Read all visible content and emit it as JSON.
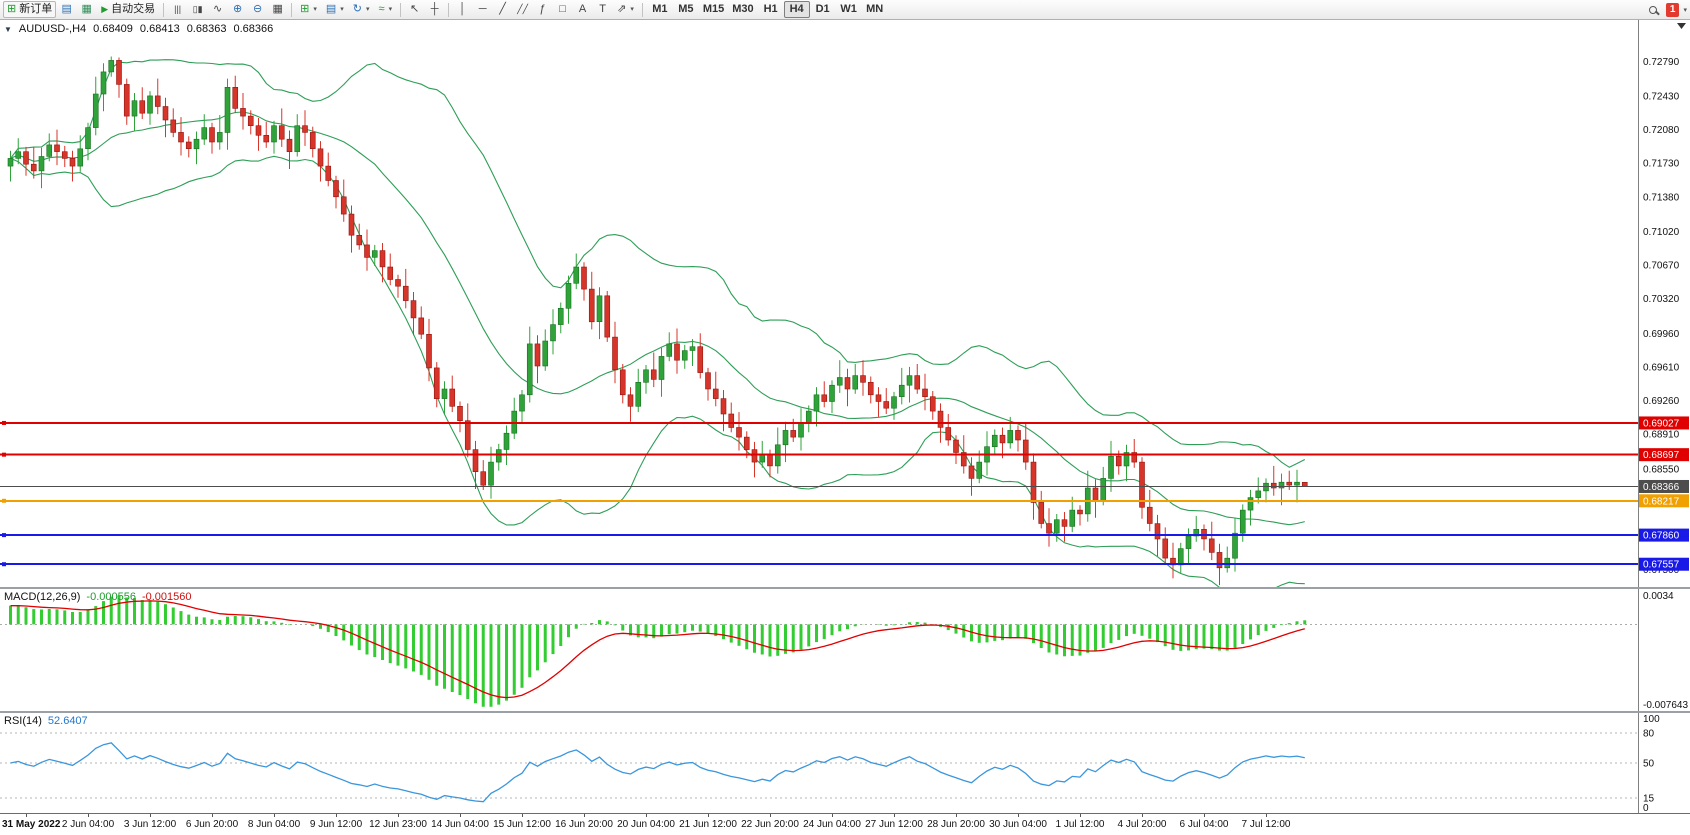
{
  "colors": {
    "bull": "#2fa33a",
    "bull_border": "#17701f",
    "bear": "#d7342a",
    "bear_border": "#8f1712",
    "bollinger": "#2e9e57",
    "macd_hist": "#33cc33",
    "macd_signal": "#e00000",
    "rsi": "#3a96dd",
    "line_red": "#e00000",
    "line_blue": "#1a1ae8",
    "line_orange": "#f0a000",
    "bid_line": "#4d4d4d"
  },
  "icons": {
    "collapse": "▼",
    "new_order": "⊞",
    "chart_window": "▤",
    "data_window": "▦",
    "auto_play": "▶",
    "bars": "|||",
    "candles": "▯▮",
    "line_chart": "∿",
    "zoom_in": "⊕",
    "zoom_out": "⊖",
    "tile": "▦",
    "new_chart": "⊞",
    "profiles": "▤",
    "period": "↻",
    "indicators": "≈",
    "cursor": "↖",
    "crosshair": "┼",
    "vline": "│",
    "hline": "─",
    "trendline": "╱",
    "channel": "╱╱",
    "fibonacci": "ƒ",
    "shapes": "□",
    "text": "A",
    "text_label": "T",
    "arrows": "⇗",
    "dropdown": "▾",
    "overflow": "▾"
  },
  "toolbar": {
    "new_order": "新订单",
    "auto_trading": "自动交易",
    "timeframes": [
      "M1",
      "M5",
      "M15",
      "M30",
      "H1",
      "H4",
      "D1",
      "W1",
      "MN"
    ],
    "active_timeframe": "H4",
    "notification_count": "1"
  },
  "chart": {
    "symbol_period": "AUDUSD-,H4",
    "open": "0.68409",
    "high": "0.68413",
    "low": "0.68363",
    "close": "0.68366"
  },
  "chart_data": {
    "type": "candlestick",
    "symbol": "AUDUSD",
    "timeframe": "H4",
    "current": {
      "open": 0.68409,
      "high": 0.68413,
      "low": 0.68363,
      "close": 0.68366
    },
    "y_axis": {
      "top_price": 0.7322,
      "bottom_price": 0.6732,
      "labels": [
        "0.72790",
        "0.72430",
        "0.72080",
        "0.71730",
        "0.71380",
        "0.71020",
        "0.70670",
        "0.70320",
        "0.69960",
        "0.69610",
        "0.69260",
        "0.68910",
        "0.68550",
        "0.68200",
        "0.67850",
        "0.67500"
      ]
    },
    "x_labels": [
      "31 May 2022",
      "2 Jun 04:00",
      "3 Jun 12:00",
      "6 Jun 20:00",
      "8 Jun 04:00",
      "9 Jun 12:00",
      "12 Jun 23:00",
      "14 Jun 04:00",
      "15 Jun 12:00",
      "16 Jun 20:00",
      "20 Jun 04:00",
      "21 Jun 12:00",
      "22 Jun 20:00",
      "24 Jun 04:00",
      "27 Jun 12:00",
      "28 Jun 20:00",
      "30 Jun 04:00",
      "1 Jul 12:00",
      "4 Jul 20:00",
      "6 Jul 04:00",
      "7 Jul 12:00"
    ],
    "x_label_indices": [
      2,
      10,
      18,
      26,
      34,
      42,
      50,
      58,
      66,
      74,
      82,
      90,
      98,
      106,
      114,
      122,
      130,
      138,
      146,
      154,
      162
    ],
    "candles": [
      [
        0.717,
        0.7186,
        0.7154,
        0.7178
      ],
      [
        0.7178,
        0.7199,
        0.7172,
        0.7185
      ],
      [
        0.7185,
        0.719,
        0.716,
        0.7172
      ],
      [
        0.7172,
        0.719,
        0.7157,
        0.7165
      ],
      [
        0.7165,
        0.7189,
        0.7147,
        0.718
      ],
      [
        0.718,
        0.7204,
        0.7175,
        0.7192
      ],
      [
        0.7192,
        0.7208,
        0.7171,
        0.7185
      ],
      [
        0.7185,
        0.7191,
        0.7169,
        0.7178
      ],
      [
        0.7178,
        0.7186,
        0.7154,
        0.717
      ],
      [
        0.717,
        0.7202,
        0.7164,
        0.7188
      ],
      [
        0.7188,
        0.7215,
        0.7176,
        0.721
      ],
      [
        0.721,
        0.7263,
        0.7202,
        0.7245
      ],
      [
        0.7245,
        0.7277,
        0.7227,
        0.7268
      ],
      [
        0.7268,
        0.7284,
        0.7263,
        0.728
      ],
      [
        0.728,
        0.7283,
        0.7241,
        0.7255
      ],
      [
        0.7255,
        0.7261,
        0.7213,
        0.7222
      ],
      [
        0.7222,
        0.7246,
        0.7206,
        0.7238
      ],
      [
        0.7238,
        0.7252,
        0.7219,
        0.7225
      ],
      [
        0.7225,
        0.7248,
        0.7213,
        0.7243
      ],
      [
        0.7243,
        0.7261,
        0.7224,
        0.7232
      ],
      [
        0.7232,
        0.7241,
        0.72,
        0.7218
      ],
      [
        0.7218,
        0.723,
        0.72,
        0.7205
      ],
      [
        0.7205,
        0.7221,
        0.7181,
        0.7195
      ],
      [
        0.7195,
        0.7201,
        0.7179,
        0.7188
      ],
      [
        0.7188,
        0.7206,
        0.7172,
        0.7198
      ],
      [
        0.7198,
        0.7224,
        0.7192,
        0.721
      ],
      [
        0.721,
        0.7215,
        0.7183,
        0.7195
      ],
      [
        0.7195,
        0.7223,
        0.7187,
        0.7205
      ],
      [
        0.7205,
        0.7261,
        0.7187,
        0.7252
      ],
      [
        0.7252,
        0.7264,
        0.7225,
        0.723
      ],
      [
        0.723,
        0.7246,
        0.7208,
        0.7222
      ],
      [
        0.7222,
        0.7228,
        0.7203,
        0.7212
      ],
      [
        0.7212,
        0.722,
        0.7186,
        0.7202
      ],
      [
        0.7202,
        0.7216,
        0.7189,
        0.7195
      ],
      [
        0.7195,
        0.7217,
        0.7183,
        0.7212
      ],
      [
        0.7212,
        0.723,
        0.719,
        0.7198
      ],
      [
        0.7198,
        0.7207,
        0.7167,
        0.7185
      ],
      [
        0.7185,
        0.7224,
        0.718,
        0.7212
      ],
      [
        0.7212,
        0.7228,
        0.7191,
        0.7205
      ],
      [
        0.7205,
        0.7211,
        0.7179,
        0.7188
      ],
      [
        0.7188,
        0.7196,
        0.7154,
        0.717
      ],
      [
        0.717,
        0.7184,
        0.7149,
        0.7155
      ],
      [
        0.7155,
        0.716,
        0.7126,
        0.7138
      ],
      [
        0.7138,
        0.7156,
        0.7112,
        0.712
      ],
      [
        0.712,
        0.7129,
        0.708,
        0.7098
      ],
      [
        0.7098,
        0.711,
        0.7083,
        0.7088
      ],
      [
        0.7088,
        0.7104,
        0.7061,
        0.7075
      ],
      [
        0.7075,
        0.7088,
        0.7066,
        0.7082
      ],
      [
        0.7082,
        0.709,
        0.7049,
        0.7065
      ],
      [
        0.7065,
        0.7079,
        0.7046,
        0.7052
      ],
      [
        0.7052,
        0.7057,
        0.7033,
        0.7045
      ],
      [
        0.7045,
        0.7063,
        0.7022,
        0.703
      ],
      [
        0.703,
        0.7039,
        0.6994,
        0.7012
      ],
      [
        0.7012,
        0.7024,
        0.699,
        0.6995
      ],
      [
        0.6995,
        0.7011,
        0.6946,
        0.696
      ],
      [
        0.696,
        0.6966,
        0.6919,
        0.6928
      ],
      [
        0.6928,
        0.6946,
        0.6912,
        0.6938
      ],
      [
        0.6938,
        0.6952,
        0.6914,
        0.692
      ],
      [
        0.692,
        0.6925,
        0.6893,
        0.6905
      ],
      [
        0.6905,
        0.6923,
        0.6867,
        0.6875
      ],
      [
        0.6875,
        0.6884,
        0.6834,
        0.6852
      ],
      [
        0.6852,
        0.6864,
        0.6833,
        0.6838
      ],
      [
        0.6838,
        0.6878,
        0.6824,
        0.6862
      ],
      [
        0.6862,
        0.6881,
        0.6853,
        0.6875
      ],
      [
        0.6875,
        0.69,
        0.6859,
        0.6892
      ],
      [
        0.6892,
        0.6929,
        0.6886,
        0.6915
      ],
      [
        0.6915,
        0.6937,
        0.6903,
        0.6932
      ],
      [
        0.6932,
        0.7003,
        0.6924,
        0.6985
      ],
      [
        0.6985,
        0.6994,
        0.6944,
        0.6962
      ],
      [
        0.6962,
        0.7,
        0.6957,
        0.6988
      ],
      [
        0.6988,
        0.7021,
        0.6974,
        0.7005
      ],
      [
        0.7005,
        0.7028,
        0.6996,
        0.7022
      ],
      [
        0.7022,
        0.7056,
        0.7006,
        0.7048
      ],
      [
        0.7048,
        0.7079,
        0.7042,
        0.7065
      ],
      [
        0.7065,
        0.707,
        0.703,
        0.7042
      ],
      [
        0.7042,
        0.706,
        0.7,
        0.7008
      ],
      [
        0.7008,
        0.7044,
        0.699,
        0.7035
      ],
      [
        0.7035,
        0.704,
        0.6987,
        0.6992
      ],
      [
        0.6992,
        0.7008,
        0.6944,
        0.6958
      ],
      [
        0.6958,
        0.6964,
        0.6923,
        0.6932
      ],
      [
        0.6932,
        0.694,
        0.6904,
        0.692
      ],
      [
        0.692,
        0.6959,
        0.6914,
        0.6945
      ],
      [
        0.6945,
        0.6963,
        0.6933,
        0.6958
      ],
      [
        0.6958,
        0.6976,
        0.694,
        0.6948
      ],
      [
        0.6948,
        0.6981,
        0.693,
        0.6972
      ],
      [
        0.6972,
        0.6997,
        0.6967,
        0.6985
      ],
      [
        0.6985,
        0.7001,
        0.6954,
        0.6968
      ],
      [
        0.6968,
        0.6984,
        0.6959,
        0.6978
      ],
      [
        0.6978,
        0.699,
        0.6962,
        0.6982
      ],
      [
        0.6982,
        0.6996,
        0.6949,
        0.6955
      ],
      [
        0.6955,
        0.696,
        0.6926,
        0.6938
      ],
      [
        0.6938,
        0.6956,
        0.692,
        0.6928
      ],
      [
        0.6928,
        0.6937,
        0.6894,
        0.6912
      ],
      [
        0.6912,
        0.6924,
        0.6893,
        0.6898
      ],
      [
        0.6898,
        0.6914,
        0.6874,
        0.6888
      ],
      [
        0.6888,
        0.6894,
        0.6866,
        0.6875
      ],
      [
        0.6875,
        0.6883,
        0.6846,
        0.6862
      ],
      [
        0.6862,
        0.6884,
        0.6856,
        0.687
      ],
      [
        0.687,
        0.6875,
        0.6846,
        0.6858
      ],
      [
        0.6858,
        0.6898,
        0.685,
        0.688
      ],
      [
        0.688,
        0.6904,
        0.6862,
        0.6895
      ],
      [
        0.6895,
        0.6907,
        0.6883,
        0.6888
      ],
      [
        0.6888,
        0.6918,
        0.6874,
        0.6902
      ],
      [
        0.6902,
        0.6921,
        0.6893,
        0.6915
      ],
      [
        0.6915,
        0.694,
        0.6899,
        0.6932
      ],
      [
        0.6932,
        0.6946,
        0.6919,
        0.6925
      ],
      [
        0.6925,
        0.6947,
        0.6913,
        0.6942
      ],
      [
        0.6942,
        0.6968,
        0.6934,
        0.695
      ],
      [
        0.695,
        0.6959,
        0.692,
        0.6938
      ],
      [
        0.6938,
        0.6964,
        0.6933,
        0.6952
      ],
      [
        0.6952,
        0.6968,
        0.6931,
        0.6945
      ],
      [
        0.6945,
        0.6951,
        0.6923,
        0.6932
      ],
      [
        0.6932,
        0.694,
        0.6909,
        0.6925
      ],
      [
        0.6925,
        0.6939,
        0.6912,
        0.6918
      ],
      [
        0.6918,
        0.6935,
        0.6906,
        0.693
      ],
      [
        0.693,
        0.696,
        0.6922,
        0.6942
      ],
      [
        0.6942,
        0.6961,
        0.6924,
        0.6952
      ],
      [
        0.6952,
        0.6964,
        0.6933,
        0.6938
      ],
      [
        0.6938,
        0.6954,
        0.6916,
        0.693
      ],
      [
        0.693,
        0.6936,
        0.6906,
        0.6915
      ],
      [
        0.6915,
        0.6923,
        0.6882,
        0.6898
      ],
      [
        0.6898,
        0.6912,
        0.6879,
        0.6885
      ],
      [
        0.6885,
        0.689,
        0.686,
        0.6872
      ],
      [
        0.6872,
        0.689,
        0.685,
        0.6858
      ],
      [
        0.6858,
        0.6867,
        0.6827,
        0.6845
      ],
      [
        0.6845,
        0.6874,
        0.684,
        0.6862
      ],
      [
        0.6862,
        0.6894,
        0.6848,
        0.6878
      ],
      [
        0.6878,
        0.6896,
        0.6869,
        0.689
      ],
      [
        0.689,
        0.6898,
        0.6866,
        0.6882
      ],
      [
        0.6882,
        0.6909,
        0.6876,
        0.6895
      ],
      [
        0.6895,
        0.69,
        0.6873,
        0.6885
      ],
      [
        0.6885,
        0.6903,
        0.6854,
        0.6862
      ],
      [
        0.6862,
        0.6871,
        0.6802,
        0.682
      ],
      [
        0.682,
        0.6832,
        0.6793,
        0.6798
      ],
      [
        0.6798,
        0.6814,
        0.6774,
        0.6788
      ],
      [
        0.6788,
        0.6808,
        0.6779,
        0.6802
      ],
      [
        0.6802,
        0.681,
        0.6779,
        0.6795
      ],
      [
        0.6795,
        0.6826,
        0.6789,
        0.6812
      ],
      [
        0.6812,
        0.6817,
        0.6796,
        0.6808
      ],
      [
        0.6808,
        0.6853,
        0.68,
        0.6835
      ],
      [
        0.6835,
        0.6844,
        0.6804,
        0.6822
      ],
      [
        0.6822,
        0.6857,
        0.6817,
        0.6845
      ],
      [
        0.6845,
        0.6884,
        0.6831,
        0.6868
      ],
      [
        0.6868,
        0.6874,
        0.6849,
        0.6858
      ],
      [
        0.6858,
        0.688,
        0.6842,
        0.6872
      ],
      [
        0.6872,
        0.6886,
        0.6856,
        0.6862
      ],
      [
        0.6862,
        0.6867,
        0.6803,
        0.6815
      ],
      [
        0.6815,
        0.6833,
        0.679,
        0.6798
      ],
      [
        0.6798,
        0.6807,
        0.6764,
        0.6782
      ],
      [
        0.6782,
        0.6794,
        0.6757,
        0.6762
      ],
      [
        0.6762,
        0.6778,
        0.6741,
        0.6755
      ],
      [
        0.6755,
        0.6778,
        0.6746,
        0.6772
      ],
      [
        0.6772,
        0.6793,
        0.6756,
        0.6785
      ],
      [
        0.6785,
        0.6806,
        0.6779,
        0.6792
      ],
      [
        0.6792,
        0.6797,
        0.677,
        0.6782
      ],
      [
        0.6782,
        0.68,
        0.676,
        0.6768
      ],
      [
        0.6768,
        0.6777,
        0.6734,
        0.6752
      ],
      [
        0.6752,
        0.6774,
        0.6747,
        0.6762
      ],
      [
        0.6762,
        0.6804,
        0.6748,
        0.6788
      ],
      [
        0.6788,
        0.6818,
        0.6779,
        0.6812
      ],
      [
        0.6812,
        0.6833,
        0.6796,
        0.6825
      ],
      [
        0.6825,
        0.6846,
        0.6819,
        0.6832
      ],
      [
        0.6832,
        0.6845,
        0.682,
        0.684
      ],
      [
        0.684,
        0.6858,
        0.6827,
        0.6835
      ],
      [
        0.6835,
        0.685,
        0.6817,
        0.6841
      ],
      [
        0.6841,
        0.6853,
        0.6833,
        0.6838
      ],
      [
        0.6838,
        0.6854,
        0.682,
        0.6841
      ],
      [
        0.68409,
        0.68413,
        0.68363,
        0.68366
      ]
    ],
    "overlays": {
      "bollinger": {
        "period": 20,
        "deviation": 2,
        "color": "#2e9e57"
      },
      "hlines": [
        {
          "price": 0.69027,
          "label": "0.69027",
          "color": "#e00000",
          "width": 2
        },
        {
          "price": 0.68697,
          "label": "0.68697",
          "color": "#e00000",
          "width": 2
        },
        {
          "price": 0.68366,
          "label": "0.68366",
          "color": "#4d4d4d",
          "width": 1,
          "type": "bid"
        },
        {
          "price": 0.68217,
          "label": "0.68217",
          "color": "#f0a000",
          "width": 2
        },
        {
          "price": 0.6786,
          "label": "0.67860",
          "color": "#1a1ae8",
          "width": 2
        },
        {
          "price": 0.67557,
          "label": "0.67557",
          "color": "#1a1ae8",
          "width": 2
        }
      ]
    },
    "macd": {
      "label": "MACD(12,26,9)",
      "value_main": "-0.000556",
      "value_signal": "-0.001560",
      "fast": 12,
      "slow": 26,
      "signal": 9,
      "scale_top": 0.0034,
      "scale_top_label": "0.0034",
      "scale_bottom_label": "-0.007643"
    },
    "rsi": {
      "label": "RSI(14)",
      "value": "52.6407",
      "period": 14,
      "levels": [
        80,
        50,
        15
      ],
      "scale_labels": [
        "100",
        "80",
        "50",
        "15",
        "0"
      ]
    }
  }
}
